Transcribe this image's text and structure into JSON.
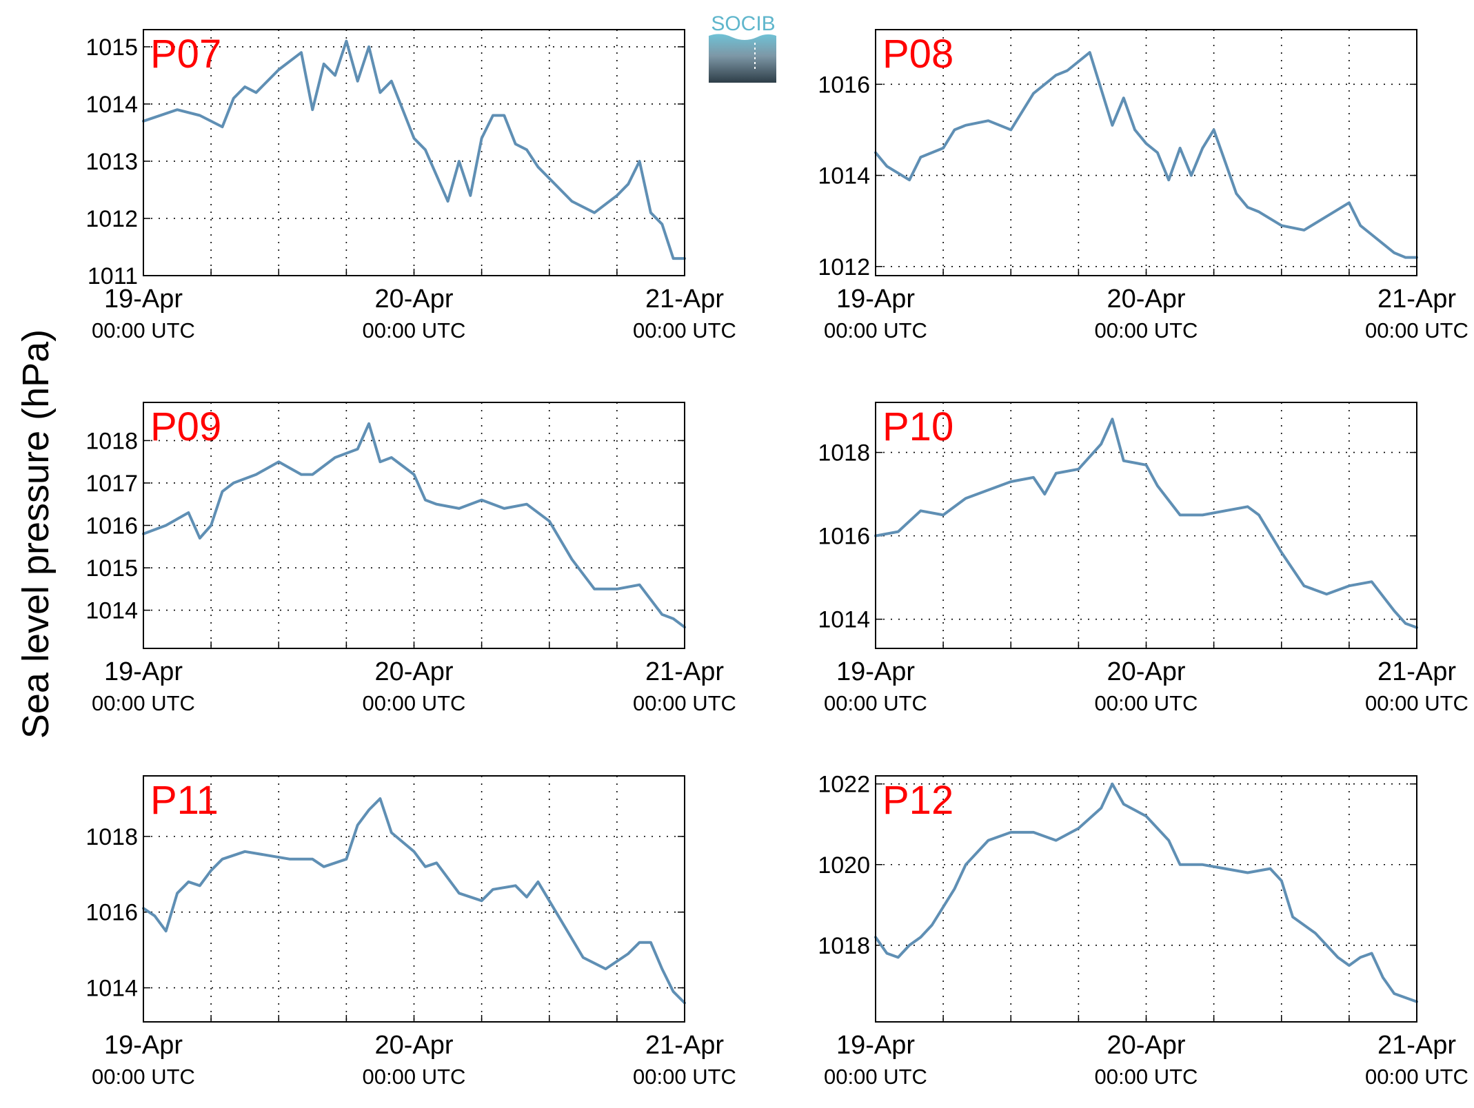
{
  "figure": {
    "ylabel": "Sea level pressure (hPa)",
    "logo_text": "SOCIB",
    "x_ticks": [
      {
        "date": "19-Apr",
        "time": "00:00 UTC"
      },
      {
        "date": "20-Apr",
        "time": "00:00 UTC"
      },
      {
        "date": "21-Apr",
        "time": "00:00 UTC"
      }
    ],
    "line_color": "#5f8fb4",
    "label_color": "#ff0000",
    "grid": "dotted"
  },
  "chart_data": [
    {
      "type": "line",
      "title": "P07",
      "ylim": [
        1011,
        1015.3
      ],
      "yticks": [
        1011,
        1012,
        1013,
        1014,
        1015
      ],
      "x": [
        "19-Apr 00:00",
        "19-Apr 03:00",
        "19-Apr 05:00",
        "19-Apr 07:00",
        "19-Apr 08:00",
        "19-Apr 09:00",
        "19-Apr 10:00",
        "19-Apr 12:00",
        "19-Apr 14:00",
        "19-Apr 15:00",
        "19-Apr 16:00",
        "19-Apr 17:00",
        "19-Apr 18:00",
        "19-Apr 19:00",
        "19-Apr 20:00",
        "19-Apr 21:00",
        "19-Apr 22:00",
        "20-Apr 00:00",
        "20-Apr 01:00",
        "20-Apr 03:00",
        "20-Apr 04:00",
        "20-Apr 05:00",
        "20-Apr 06:00",
        "20-Apr 07:00",
        "20-Apr 08:00",
        "20-Apr 09:00",
        "20-Apr 10:00",
        "20-Apr 11:00",
        "20-Apr 14:00",
        "20-Apr 16:00",
        "20-Apr 18:00",
        "20-Apr 19:00",
        "20-Apr 20:00",
        "20-Apr 21:00",
        "20-Apr 22:00",
        "20-Apr 23:00",
        "21-Apr 00:00"
      ],
      "values": [
        1013.7,
        1013.9,
        1013.8,
        1013.6,
        1014.1,
        1014.3,
        1014.2,
        1014.6,
        1014.9,
        1013.9,
        1014.7,
        1014.5,
        1015.1,
        1014.4,
        1015.0,
        1014.2,
        1014.4,
        1013.4,
        1013.2,
        1012.3,
        1013.0,
        1012.4,
        1013.4,
        1013.8,
        1013.8,
        1013.3,
        1013.2,
        1012.9,
        1012.3,
        1012.1,
        1012.4,
        1012.6,
        1013.0,
        1012.1,
        1011.9,
        1011.3,
        1011.3
      ]
    },
    {
      "type": "line",
      "title": "P08",
      "ylim": [
        1011.8,
        1017.2
      ],
      "yticks": [
        1012,
        1014,
        1016
      ],
      "x": [
        "19-Apr 00:00",
        "19-Apr 01:00",
        "19-Apr 03:00",
        "19-Apr 04:00",
        "19-Apr 06:00",
        "19-Apr 07:00",
        "19-Apr 08:00",
        "19-Apr 10:00",
        "19-Apr 12:00",
        "19-Apr 14:00",
        "19-Apr 16:00",
        "19-Apr 17:00",
        "19-Apr 19:00",
        "19-Apr 21:00",
        "19-Apr 22:00",
        "19-Apr 23:00",
        "20-Apr 00:00",
        "20-Apr 01:00",
        "20-Apr 02:00",
        "20-Apr 03:00",
        "20-Apr 04:00",
        "20-Apr 05:00",
        "20-Apr 06:00",
        "20-Apr 07:00",
        "20-Apr 08:00",
        "20-Apr 09:00",
        "20-Apr 10:00",
        "20-Apr 12:00",
        "20-Apr 14:00",
        "20-Apr 16:00",
        "20-Apr 18:00",
        "20-Apr 19:00",
        "20-Apr 20:00",
        "20-Apr 21:00",
        "20-Apr 22:00",
        "20-Apr 23:00",
        "21-Apr 00:00"
      ],
      "values": [
        1014.5,
        1014.2,
        1013.9,
        1014.4,
        1014.6,
        1015.0,
        1015.1,
        1015.2,
        1015.0,
        1015.8,
        1016.2,
        1016.3,
        1016.7,
        1015.1,
        1015.7,
        1015.0,
        1014.7,
        1014.5,
        1013.9,
        1014.6,
        1014.0,
        1014.6,
        1015.0,
        1014.3,
        1013.6,
        1013.3,
        1013.2,
        1012.9,
        1012.8,
        1013.1,
        1013.4,
        1012.9,
        1012.7,
        1012.5,
        1012.3,
        1012.2,
        1012.2
      ]
    },
    {
      "type": "line",
      "title": "P09",
      "ylim": [
        1013.1,
        1018.9
      ],
      "yticks": [
        1014,
        1015,
        1016,
        1017,
        1018
      ],
      "x": [
        "19-Apr 00:00",
        "19-Apr 02:00",
        "19-Apr 04:00",
        "19-Apr 05:00",
        "19-Apr 06:00",
        "19-Apr 07:00",
        "19-Apr 08:00",
        "19-Apr 10:00",
        "19-Apr 12:00",
        "19-Apr 14:00",
        "19-Apr 15:00",
        "19-Apr 17:00",
        "19-Apr 19:00",
        "19-Apr 20:00",
        "19-Apr 21:00",
        "19-Apr 22:00",
        "20-Apr 00:00",
        "20-Apr 01:00",
        "20-Apr 02:00",
        "20-Apr 04:00",
        "20-Apr 06:00",
        "20-Apr 08:00",
        "20-Apr 10:00",
        "20-Apr 12:00",
        "20-Apr 14:00",
        "20-Apr 16:00",
        "20-Apr 18:00",
        "20-Apr 20:00",
        "20-Apr 22:00",
        "20-Apr 23:00",
        "21-Apr 00:00"
      ],
      "values": [
        1015.8,
        1016.0,
        1016.3,
        1015.7,
        1016.0,
        1016.8,
        1017.0,
        1017.2,
        1017.5,
        1017.2,
        1017.2,
        1017.6,
        1017.8,
        1018.4,
        1017.5,
        1017.6,
        1017.2,
        1016.6,
        1016.5,
        1016.4,
        1016.6,
        1016.4,
        1016.5,
        1016.1,
        1015.2,
        1014.5,
        1014.5,
        1014.6,
        1013.9,
        1013.8,
        1013.6
      ]
    },
    {
      "type": "line",
      "title": "P10",
      "ylim": [
        1013.3,
        1019.2
      ],
      "yticks": [
        1014,
        1016,
        1018
      ],
      "x": [
        "19-Apr 00:00",
        "19-Apr 02:00",
        "19-Apr 04:00",
        "19-Apr 06:00",
        "19-Apr 08:00",
        "19-Apr 10:00",
        "19-Apr 12:00",
        "19-Apr 14:00",
        "19-Apr 15:00",
        "19-Apr 16:00",
        "19-Apr 18:00",
        "19-Apr 20:00",
        "19-Apr 21:00",
        "19-Apr 22:00",
        "20-Apr 00:00",
        "20-Apr 01:00",
        "20-Apr 03:00",
        "20-Apr 05:00",
        "20-Apr 07:00",
        "20-Apr 09:00",
        "20-Apr 10:00",
        "20-Apr 12:00",
        "20-Apr 14:00",
        "20-Apr 16:00",
        "20-Apr 18:00",
        "20-Apr 20:00",
        "20-Apr 22:00",
        "20-Apr 23:00",
        "21-Apr 00:00"
      ],
      "values": [
        1016.0,
        1016.1,
        1016.6,
        1016.5,
        1016.9,
        1017.1,
        1017.3,
        1017.4,
        1017.0,
        1017.5,
        1017.6,
        1018.2,
        1018.8,
        1017.8,
        1017.7,
        1017.2,
        1016.5,
        1016.5,
        1016.6,
        1016.7,
        1016.5,
        1015.6,
        1014.8,
        1014.6,
        1014.8,
        1014.9,
        1014.2,
        1013.9,
        1013.8
      ]
    },
    {
      "type": "line",
      "title": "P11",
      "ylim": [
        1013.1,
        1019.6
      ],
      "yticks": [
        1014,
        1016,
        1018
      ],
      "x": [
        "19-Apr 00:00",
        "19-Apr 01:00",
        "19-Apr 02:00",
        "19-Apr 03:00",
        "19-Apr 04:00",
        "19-Apr 05:00",
        "19-Apr 06:00",
        "19-Apr 07:00",
        "19-Apr 09:00",
        "19-Apr 11:00",
        "19-Apr 13:00",
        "19-Apr 15:00",
        "19-Apr 16:00",
        "19-Apr 18:00",
        "19-Apr 19:00",
        "19-Apr 20:00",
        "19-Apr 21:00",
        "19-Apr 22:00",
        "20-Apr 00:00",
        "20-Apr 01:00",
        "20-Apr 02:00",
        "20-Apr 03:00",
        "20-Apr 04:00",
        "20-Apr 06:00",
        "20-Apr 07:00",
        "20-Apr 09:00",
        "20-Apr 10:00",
        "20-Apr 11:00",
        "20-Apr 13:00",
        "20-Apr 15:00",
        "20-Apr 17:00",
        "20-Apr 19:00",
        "20-Apr 20:00",
        "20-Apr 21:00",
        "20-Apr 22:00",
        "20-Apr 23:00",
        "21-Apr 00:00"
      ],
      "values": [
        1016.1,
        1015.9,
        1015.5,
        1016.5,
        1016.8,
        1016.7,
        1017.1,
        1017.4,
        1017.6,
        1017.5,
        1017.4,
        1017.4,
        1017.2,
        1017.4,
        1018.3,
        1018.7,
        1019.0,
        1018.1,
        1017.6,
        1017.2,
        1017.3,
        1016.9,
        1016.5,
        1016.3,
        1016.6,
        1016.7,
        1016.4,
        1016.8,
        1015.8,
        1014.8,
        1014.5,
        1014.9,
        1015.2,
        1015.2,
        1014.5,
        1013.9,
        1013.6
      ]
    },
    {
      "type": "line",
      "title": "P12",
      "ylim": [
        1016.1,
        1022.2
      ],
      "yticks": [
        1018,
        1020,
        1022
      ],
      "x": [
        "19-Apr 00:00",
        "19-Apr 01:00",
        "19-Apr 02:00",
        "19-Apr 03:00",
        "19-Apr 04:00",
        "19-Apr 05:00",
        "19-Apr 07:00",
        "19-Apr 08:00",
        "19-Apr 10:00",
        "19-Apr 12:00",
        "19-Apr 14:00",
        "19-Apr 16:00",
        "19-Apr 18:00",
        "19-Apr 20:00",
        "19-Apr 21:00",
        "19-Apr 22:00",
        "20-Apr 00:00",
        "20-Apr 02:00",
        "20-Apr 03:00",
        "20-Apr 05:00",
        "20-Apr 07:00",
        "20-Apr 09:00",
        "20-Apr 11:00",
        "20-Apr 12:00",
        "20-Apr 13:00",
        "20-Apr 15:00",
        "20-Apr 17:00",
        "20-Apr 18:00",
        "20-Apr 19:00",
        "20-Apr 20:00",
        "20-Apr 21:00",
        "20-Apr 22:00",
        "20-Apr 23:00",
        "21-Apr 00:00"
      ],
      "values": [
        1018.2,
        1017.8,
        1017.7,
        1018.0,
        1018.2,
        1018.5,
        1019.4,
        1020.0,
        1020.6,
        1020.8,
        1020.8,
        1020.6,
        1020.9,
        1021.4,
        1022.0,
        1021.5,
        1021.2,
        1020.6,
        1020.0,
        1020.0,
        1019.9,
        1019.8,
        1019.9,
        1019.6,
        1018.7,
        1018.3,
        1017.7,
        1017.5,
        1017.7,
        1017.8,
        1017.2,
        1016.8,
        1016.7,
        1016.6
      ]
    }
  ]
}
